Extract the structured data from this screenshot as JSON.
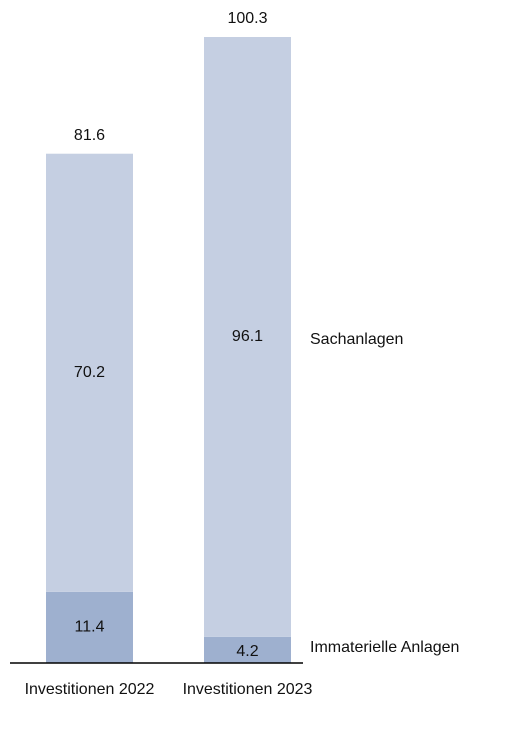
{
  "chart_data": {
    "type": "stacked_bar",
    "categories": [
      "Investitionen 2022",
      "Investitionen 2023"
    ],
    "series": [
      {
        "name": "Immaterielle Anlagen",
        "color": "#9eb0cf",
        "values": [
          11.4,
          4.2
        ]
      },
      {
        "name": "Sachanlagen",
        "color": "#c5cfe2",
        "values": [
          70.2,
          96.1
        ]
      }
    ],
    "totals": [
      81.6,
      100.3
    ]
  }
}
